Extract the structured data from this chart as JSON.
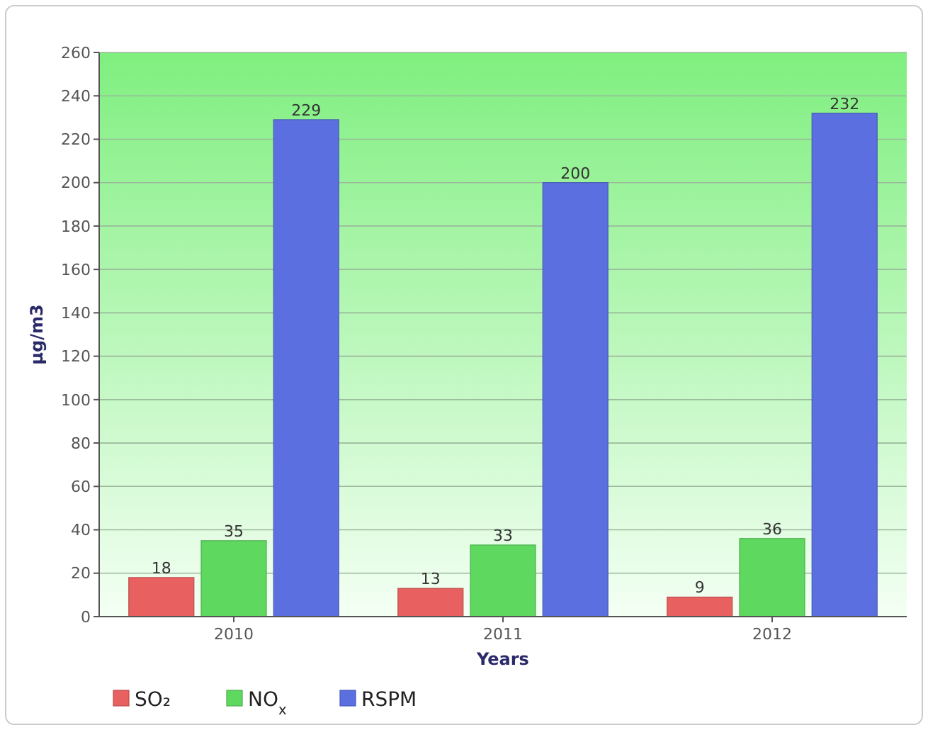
{
  "chart_data": {
    "type": "bar",
    "xlabel": "Years",
    "ylabel": "µg/m3",
    "categories": [
      "2010",
      "2011",
      "2012"
    ],
    "series": [
      {
        "name": "SO₂",
        "color": "#e8605f",
        "values": [
          18,
          13,
          9
        ]
      },
      {
        "name": "NO$_{x}$",
        "color": "#5fd85f",
        "values": [
          35,
          33,
          36
        ]
      },
      {
        "name": "RSPM",
        "color": "#5b6fe0",
        "values": [
          229,
          200,
          232
        ]
      }
    ],
    "ylim": [
      0,
      260
    ],
    "yticks": [
      0,
      20,
      40,
      60,
      80,
      100,
      120,
      140,
      160,
      180,
      200,
      220,
      240,
      260
    ],
    "grid": "y",
    "legend": "bottom left",
    "data_labels": true
  }
}
